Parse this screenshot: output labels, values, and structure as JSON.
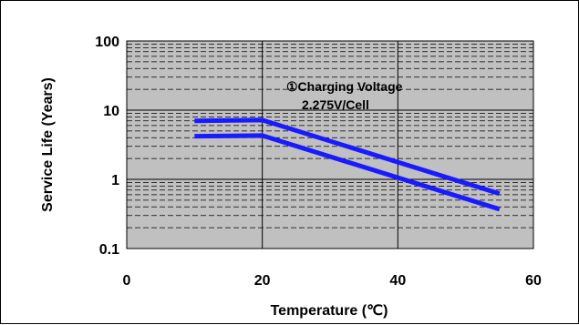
{
  "chart_data": {
    "type": "line",
    "xlabel": "Temperature (℃)",
    "ylabel": "Service Life (Years)",
    "xlim": [
      0,
      60
    ],
    "ylim": [
      0.1,
      100
    ],
    "yscale": "log",
    "x_ticks": [
      "0",
      "20",
      "40",
      "60"
    ],
    "y_ticks": [
      "0.1",
      "1",
      "10",
      "100"
    ],
    "grid": true,
    "plot_background": "#c0c0c0",
    "line_color": "#1a1aff",
    "annotation": [
      "①Charging Voltage",
      "2.275V/Cell"
    ],
    "series": [
      {
        "x": [
          10,
          20,
          55
        ],
        "y": [
          7.0,
          7.2,
          0.62
        ]
      },
      {
        "x": [
          10,
          20,
          55
        ],
        "y": [
          4.2,
          4.3,
          0.37
        ]
      }
    ]
  }
}
